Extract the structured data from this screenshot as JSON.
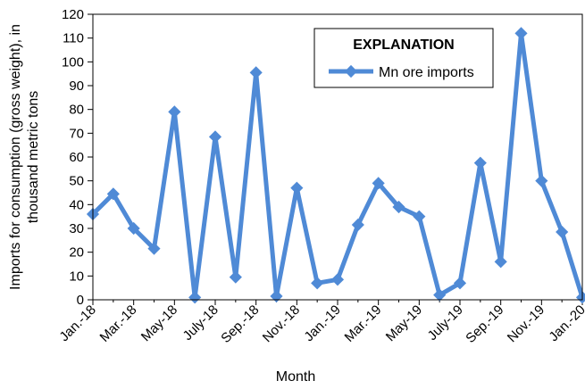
{
  "chart_data": {
    "type": "line",
    "x": [
      "Jan.-18",
      "Feb.-18",
      "Mar.-18",
      "Apr.-18",
      "May-18",
      "June-18",
      "July-18",
      "Aug.-18",
      "Sep.-18",
      "Oct.-18",
      "Nov.-18",
      "Dec.-18",
      "Jan.-19",
      "Feb.-19",
      "Mar.-19",
      "Apr.-19",
      "May-19",
      "June-19",
      "July-19",
      "Aug.-19",
      "Sep.-19",
      "Oct.-19",
      "Nov.-19",
      "Dec.-19",
      "Jan.-20"
    ],
    "x_tick_labels": [
      "Jan.-18",
      "Mar.-18",
      "May-18",
      "July-18",
      "Sep.-18",
      "Nov.-18",
      "Jan.-19",
      "Mar.-19",
      "May-19",
      "July-19",
      "Sep.-19",
      "Nov.-19",
      "Jan.-20"
    ],
    "series": [
      {
        "name": "Mn ore imports",
        "values": [
          36,
          44.5,
          30,
          21.5,
          79,
          1,
          68.5,
          9.5,
          95.5,
          1.5,
          47,
          7,
          8.5,
          31.5,
          49,
          39,
          35,
          2,
          7,
          57.5,
          16,
          112,
          50,
          28.5,
          1
        ],
        "color": "#4f8ad6"
      }
    ],
    "xlabel": "Month",
    "ylabel": "Imports for consumption (gross weight), in thousand metric tons",
    "ylabel_lines": [
      "Imports for consumption (gross weight), in",
      "thousand metric tons"
    ],
    "ylim": [
      0,
      120
    ],
    "y_ticks": [
      0,
      10,
      20,
      30,
      40,
      50,
      60,
      70,
      80,
      90,
      100,
      110,
      120
    ],
    "grid": false,
    "legend": {
      "title": "EXPLANATION",
      "position": "top-right"
    }
  }
}
